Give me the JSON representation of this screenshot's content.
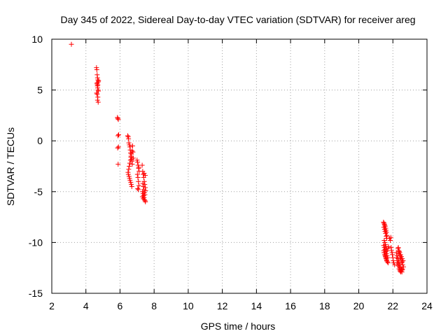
{
  "chart_data": {
    "type": "scatter",
    "title": "Day 345 of 2022, Sidereal Day-to-day VTEC variation (SDTVAR) for receiver areg",
    "xlabel": "GPS time / hours",
    "ylabel": "SDTVAR / TECUs",
    "xlim": [
      2,
      24
    ],
    "ylim": [
      -15,
      10
    ],
    "xticks": [
      2,
      4,
      6,
      8,
      10,
      12,
      14,
      16,
      18,
      20,
      22,
      24
    ],
    "yticks": [
      -15,
      -10,
      -5,
      0,
      5,
      10
    ],
    "xtick_labels": [
      "2",
      "4",
      "6",
      "8",
      "10",
      "12",
      "14",
      "16",
      "18",
      "20",
      "22",
      "24"
    ],
    "ytick_labels": [
      "-15",
      "-10",
      "-5",
      "0",
      "5",
      "10"
    ],
    "grid": true,
    "marker": "+",
    "color": "#ff0000",
    "series": [
      {
        "name": "SDTVAR",
        "x": [
          3.15,
          4.62,
          4.64,
          4.66,
          4.68,
          4.7,
          4.72,
          4.65,
          4.67,
          4.69,
          4.71,
          4.73,
          4.63,
          4.66,
          4.7,
          4.68,
          4.72,
          4.74,
          4.66,
          4.7,
          5.85,
          5.87,
          5.9,
          5.92,
          5.88,
          5.86,
          5.89,
          5.91,
          6.45,
          6.48,
          6.5,
          6.52,
          6.55,
          6.58,
          6.6,
          6.62,
          6.65,
          6.68,
          6.7,
          6.72,
          6.47,
          6.51,
          6.54,
          6.57,
          6.61,
          6.64,
          6.67,
          6.71,
          6.49,
          6.53,
          6.56,
          6.59,
          6.63,
          6.66,
          6.69,
          6.74,
          6.76,
          6.78,
          7.0,
          7.03,
          7.06,
          7.09,
          7.12,
          7.02,
          7.05,
          7.08,
          7.11,
          7.04,
          7.07,
          7.1,
          7.3,
          7.33,
          7.36,
          7.39,
          7.42,
          7.45,
          7.48,
          7.5,
          7.32,
          7.35,
          7.38,
          7.41,
          7.44,
          7.47,
          7.49,
          7.34,
          7.37,
          7.4,
          7.43,
          7.46,
          7.31,
          7.36,
          7.42,
          7.48,
          21.45,
          21.48,
          21.5,
          21.52,
          21.55,
          21.58,
          21.6,
          21.62,
          21.65,
          21.47,
          21.51,
          21.54,
          21.57,
          21.61,
          21.64,
          21.49,
          21.53,
          21.56,
          21.59,
          21.63,
          21.66,
          21.46,
          21.5,
          21.54,
          21.58,
          21.62,
          21.66,
          21.7,
          21.48,
          21.52,
          21.56,
          21.6,
          21.64,
          21.68,
          21.72,
          21.47,
          21.51,
          21.55,
          21.59,
          21.63,
          21.67,
          21.71,
          21.74,
          21.8,
          21.85,
          21.9,
          21.95,
          22.0,
          22.05,
          22.1,
          21.88,
          21.92,
          21.97,
          22.02,
          22.2,
          22.25,
          22.3,
          22.35,
          22.4,
          22.45,
          22.5,
          22.55,
          22.22,
          22.28,
          22.33,
          22.38,
          22.43,
          22.48,
          22.53,
          22.26,
          22.31,
          22.36,
          22.41,
          22.46,
          22.51,
          22.56,
          22.3,
          22.35,
          22.4,
          22.45,
          22.5,
          22.55,
          22.6,
          22.32,
          22.37,
          22.42,
          22.47,
          22.52,
          22.57,
          22.62,
          22.34,
          22.44,
          22.54
        ],
        "y": [
          9.5,
          7.2,
          7.0,
          6.5,
          6.2,
          6.0,
          5.8,
          5.6,
          5.4,
          5.2,
          5.0,
          4.9,
          4.7,
          4.6,
          4.3,
          4.0,
          3.8,
          5.9,
          5.7,
          5.5,
          2.3,
          2.2,
          2.1,
          0.6,
          0.5,
          -0.7,
          -2.3,
          -0.6,
          0.5,
          0.4,
          0.2,
          -0.2,
          -0.4,
          -0.6,
          -0.9,
          -1.2,
          -1.5,
          -1.8,
          -2.0,
          -2.3,
          -3.1,
          -2.8,
          -2.5,
          -2.2,
          -1.9,
          -1.6,
          -1.3,
          -1.0,
          -3.3,
          -3.5,
          -3.7,
          -3.9,
          -4.1,
          -4.3,
          -4.5,
          -0.5,
          -1.1,
          -1.7,
          -1.9,
          -2.1,
          -2.4,
          -2.7,
          -3.0,
          -3.3,
          -3.6,
          -4.0,
          -4.4,
          -4.7,
          -4.8,
          -2.6,
          -2.4,
          -3.0,
          -3.3,
          -3.6,
          -4.0,
          -4.3,
          -4.6,
          -4.9,
          -5.0,
          -5.2,
          -5.4,
          -5.6,
          -5.8,
          -5.9,
          -6.0,
          -4.2,
          -4.5,
          -4.8,
          -5.1,
          -5.3,
          -5.5,
          -5.7,
          -3.2,
          -3.4,
          -8.0,
          -8.1,
          -8.2,
          -8.3,
          -8.4,
          -8.6,
          -8.8,
          -9.0,
          -9.3,
          -8.5,
          -8.7,
          -8.9,
          -9.1,
          -9.4,
          -9.6,
          -9.8,
          -10.0,
          -10.2,
          -10.4,
          -10.6,
          -10.8,
          -10.3,
          -10.5,
          -10.7,
          -10.9,
          -11.1,
          -11.3,
          -11.5,
          -11.0,
          -11.2,
          -11.4,
          -11.6,
          -11.8,
          -11.9,
          -12.0,
          -10.8,
          -11.0,
          -11.3,
          -11.5,
          -11.7,
          -11.9,
          -10.6,
          -10.4,
          -9.6,
          -9.8,
          -10.5,
          -11.0,
          -11.5,
          -12.0,
          -12.2,
          -9.5,
          -10.8,
          -11.2,
          -11.8,
          -11.0,
          -11.3,
          -11.6,
          -11.9,
          -12.2,
          -12.5,
          -12.6,
          -12.7,
          -11.5,
          -11.8,
          -12.1,
          -12.4,
          -12.7,
          -12.8,
          -12.9,
          -12.0,
          -12.3,
          -12.6,
          -12.8,
          -12.9,
          -12.7,
          -12.6,
          -10.6,
          -10.8,
          -11.0,
          -11.2,
          -11.4,
          -11.6,
          -11.8,
          -10.5,
          -10.9,
          -11.3,
          -11.7,
          -12.0,
          -12.2,
          -12.4,
          -11.1,
          -11.5,
          -11.9
        ]
      }
    ]
  }
}
